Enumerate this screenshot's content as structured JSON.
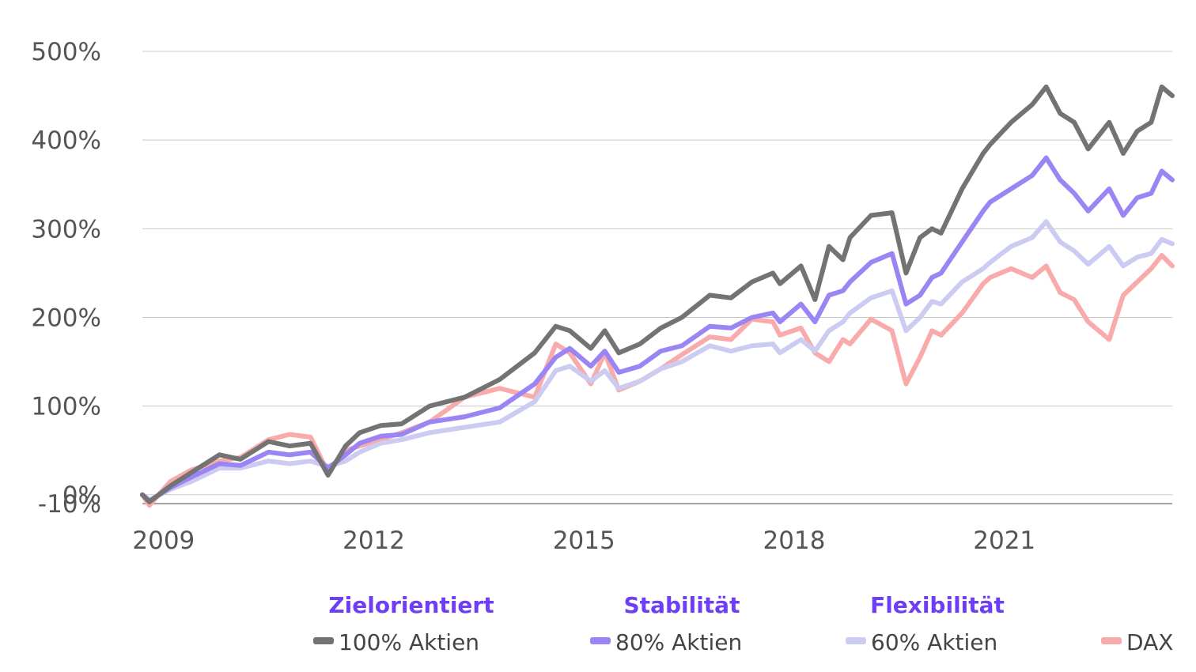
{
  "chart_data": {
    "type": "line",
    "ylim": [
      -10,
      500
    ],
    "yticks": [
      -10,
      0,
      100,
      200,
      300,
      400,
      500
    ],
    "ytick_labels": [
      "-10%",
      "0%",
      "100%",
      "200%",
      "300%",
      "400%",
      "500%"
    ],
    "xlim": [
      2008.9,
      2023.6
    ],
    "xticks": [
      2009,
      2012,
      2015,
      2018,
      2021
    ],
    "xtick_labels": [
      "2009",
      "2012",
      "2015",
      "2018",
      "2021"
    ],
    "grid": "horizontal",
    "legend_position": "bottom",
    "legend_groups": [
      {
        "label": "Zielorientiert",
        "series": "100% Aktien",
        "color": "#6f3df5"
      },
      {
        "label": "Stabilität",
        "series": "80% Aktien",
        "color": "#6f3df5"
      },
      {
        "label": "Flexibilität",
        "series": "60% Aktien",
        "color": "#6f3df5"
      }
    ],
    "series": [
      {
        "name": "100% Aktien",
        "color": "#737373",
        "x": [
          2008.9,
          2009.0,
          2009.3,
          2009.6,
          2010.0,
          2010.3,
          2010.7,
          2011.0,
          2011.3,
          2011.55,
          2011.8,
          2012.0,
          2012.3,
          2012.6,
          2013.0,
          2013.5,
          2014.0,
          2014.5,
          2014.8,
          2015.0,
          2015.3,
          2015.5,
          2015.7,
          2016.0,
          2016.3,
          2016.6,
          2017.0,
          2017.3,
          2017.6,
          2017.9,
          2018.0,
          2018.3,
          2018.5,
          2018.7,
          2018.9,
          2019.0,
          2019.3,
          2019.6,
          2019.8,
          2020.0,
          2020.17,
          2020.3,
          2020.6,
          2020.9,
          2021.0,
          2021.3,
          2021.6,
          2021.8,
          2022.0,
          2022.2,
          2022.4,
          2022.7,
          2022.9,
          2023.1,
          2023.3,
          2023.45,
          2023.6
        ],
        "y": [
          0,
          -8,
          10,
          25,
          45,
          40,
          60,
          55,
          58,
          22,
          55,
          70,
          78,
          80,
          100,
          110,
          130,
          160,
          190,
          185,
          165,
          185,
          160,
          170,
          188,
          200,
          225,
          222,
          240,
          250,
          238,
          258,
          220,
          280,
          265,
          290,
          315,
          318,
          250,
          290,
          300,
          295,
          345,
          385,
          395,
          420,
          440,
          460,
          430,
          420,
          390,
          420,
          385,
          410,
          420,
          460,
          450
        ]
      },
      {
        "name": "80% Aktien",
        "color": "#9b84f3",
        "x": [
          2008.9,
          2009.0,
          2009.3,
          2009.6,
          2010.0,
          2010.3,
          2010.7,
          2011.0,
          2011.3,
          2011.55,
          2011.8,
          2012.0,
          2012.3,
          2012.6,
          2013.0,
          2013.5,
          2014.0,
          2014.5,
          2014.8,
          2015.0,
          2015.3,
          2015.5,
          2015.7,
          2016.0,
          2016.3,
          2016.6,
          2017.0,
          2017.3,
          2017.6,
          2017.9,
          2018.0,
          2018.3,
          2018.5,
          2018.7,
          2018.9,
          2019.0,
          2019.3,
          2019.6,
          2019.8,
          2020.0,
          2020.17,
          2020.3,
          2020.6,
          2020.9,
          2021.0,
          2021.3,
          2021.6,
          2021.8,
          2022.0,
          2022.2,
          2022.4,
          2022.7,
          2022.9,
          2023.1,
          2023.3,
          2023.45,
          2023.6
        ],
        "y": [
          0,
          -7,
          8,
          20,
          35,
          33,
          48,
          45,
          48,
          30,
          45,
          58,
          66,
          68,
          82,
          88,
          98,
          125,
          155,
          165,
          145,
          162,
          138,
          145,
          162,
          168,
          190,
          188,
          200,
          205,
          195,
          215,
          195,
          225,
          230,
          240,
          262,
          272,
          215,
          225,
          245,
          250,
          285,
          320,
          330,
          345,
          360,
          380,
          355,
          340,
          320,
          345,
          315,
          335,
          340,
          365,
          355
        ]
      },
      {
        "name": "60% Aktien",
        "color": "#cccbf1",
        "x": [
          2008.9,
          2009.0,
          2009.3,
          2009.6,
          2010.0,
          2010.3,
          2010.7,
          2011.0,
          2011.3,
          2011.55,
          2011.8,
          2012.0,
          2012.3,
          2012.6,
          2013.0,
          2013.5,
          2014.0,
          2014.5,
          2014.8,
          2015.0,
          2015.3,
          2015.5,
          2015.7,
          2016.0,
          2016.3,
          2016.6,
          2017.0,
          2017.3,
          2017.6,
          2017.9,
          2018.0,
          2018.3,
          2018.5,
          2018.7,
          2018.9,
          2019.0,
          2019.3,
          2019.6,
          2019.8,
          2020.0,
          2020.17,
          2020.3,
          2020.6,
          2020.9,
          2021.0,
          2021.3,
          2021.6,
          2021.8,
          2022.0,
          2022.2,
          2022.4,
          2022.7,
          2022.9,
          2023.1,
          2023.3,
          2023.45,
          2023.6
        ],
        "y": [
          0,
          -6,
          6,
          15,
          30,
          30,
          38,
          35,
          38,
          32,
          38,
          48,
          58,
          62,
          70,
          76,
          82,
          105,
          140,
          145,
          128,
          140,
          120,
          128,
          142,
          150,
          168,
          162,
          168,
          170,
          160,
          175,
          162,
          185,
          195,
          205,
          222,
          230,
          185,
          200,
          218,
          215,
          240,
          255,
          262,
          280,
          290,
          308,
          285,
          275,
          260,
          280,
          258,
          268,
          272,
          288,
          283
        ]
      },
      {
        "name": "DAX",
        "color": "#f9aaaa",
        "x": [
          2008.9,
          2009.0,
          2009.3,
          2009.6,
          2010.0,
          2010.3,
          2010.7,
          2011.0,
          2011.3,
          2011.55,
          2011.8,
          2012.0,
          2012.3,
          2012.6,
          2013.0,
          2013.5,
          2014.0,
          2014.5,
          2014.8,
          2015.0,
          2015.3,
          2015.5,
          2015.7,
          2016.0,
          2016.3,
          2016.6,
          2017.0,
          2017.3,
          2017.6,
          2017.9,
          2018.0,
          2018.3,
          2018.5,
          2018.7,
          2018.9,
          2019.0,
          2019.3,
          2019.6,
          2019.8,
          2020.0,
          2020.17,
          2020.3,
          2020.6,
          2020.9,
          2021.0,
          2021.3,
          2021.6,
          2021.8,
          2022.0,
          2022.2,
          2022.4,
          2022.7,
          2022.9,
          2023.1,
          2023.3,
          2023.45,
          2023.6
        ],
        "y": [
          0,
          -12,
          15,
          28,
          38,
          42,
          62,
          68,
          65,
          25,
          50,
          55,
          62,
          70,
          82,
          110,
          120,
          110,
          170,
          160,
          125,
          160,
          118,
          128,
          142,
          158,
          178,
          175,
          198,
          195,
          180,
          188,
          160,
          150,
          175,
          170,
          198,
          185,
          125,
          155,
          185,
          180,
          205,
          238,
          245,
          255,
          245,
          258,
          228,
          220,
          195,
          175,
          225,
          240,
          255,
          270,
          258
        ]
      }
    ]
  }
}
